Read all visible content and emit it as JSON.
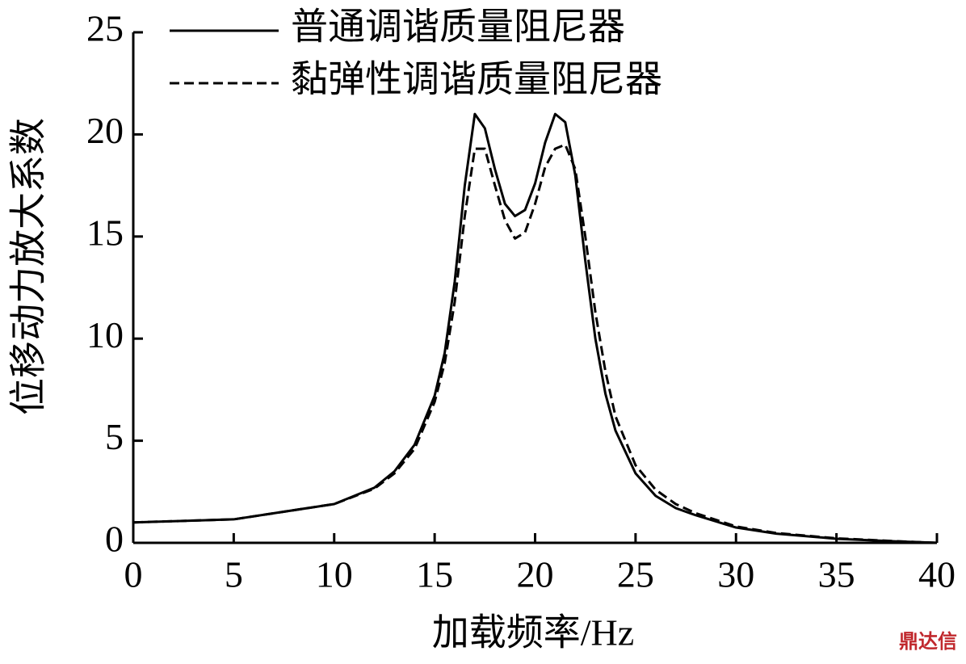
{
  "chart_data": {
    "type": "line",
    "xlabel": "加载频率/Hz",
    "ylabel": "位移动力放大系数",
    "x": [
      0,
      5,
      10,
      12,
      13,
      14,
      15,
      15.5,
      16,
      16.5,
      17,
      17.5,
      18,
      18.5,
      19,
      19.5,
      20,
      20.5,
      21,
      21.5,
      22,
      22.5,
      23,
      23.5,
      24,
      25,
      26,
      27,
      28,
      30,
      32,
      35,
      38,
      40
    ],
    "series": [
      {
        "name": "普通调谐质量阻尼器",
        "color": "#000000",
        "line_style": "solid",
        "values": [
          1.0,
          1.15,
          1.9,
          2.7,
          3.5,
          4.8,
          7.2,
          9.3,
          12.8,
          17.5,
          21.0,
          20.3,
          18.3,
          16.6,
          16.0,
          16.3,
          17.6,
          19.6,
          21.0,
          20.6,
          18.0,
          13.8,
          10.0,
          7.3,
          5.5,
          3.4,
          2.3,
          1.7,
          1.35,
          0.75,
          0.45,
          0.2,
          0.07,
          0.0
        ]
      },
      {
        "name": "黏弹性调谐质量阻尼器",
        "color": "#000000",
        "line_style": "dashed",
        "values": [
          1.0,
          1.15,
          1.9,
          2.65,
          3.4,
          4.6,
          6.9,
          8.8,
          11.8,
          16.0,
          19.3,
          19.3,
          17.5,
          15.8,
          14.9,
          15.2,
          16.6,
          18.4,
          19.3,
          19.5,
          18.3,
          15.0,
          11.3,
          8.4,
          6.2,
          3.8,
          2.6,
          1.9,
          1.45,
          0.8,
          0.48,
          0.22,
          0.08,
          0.0
        ]
      }
    ],
    "xlim": [
      0,
      40
    ],
    "xticks": [
      0,
      5,
      10,
      15,
      20,
      25,
      30,
      35,
      40
    ],
    "ylim": [
      0,
      25
    ],
    "yticks": [
      0,
      5,
      10,
      15,
      20,
      25
    ],
    "grid": false,
    "legend": "top"
  },
  "watermark": "鼎达信"
}
